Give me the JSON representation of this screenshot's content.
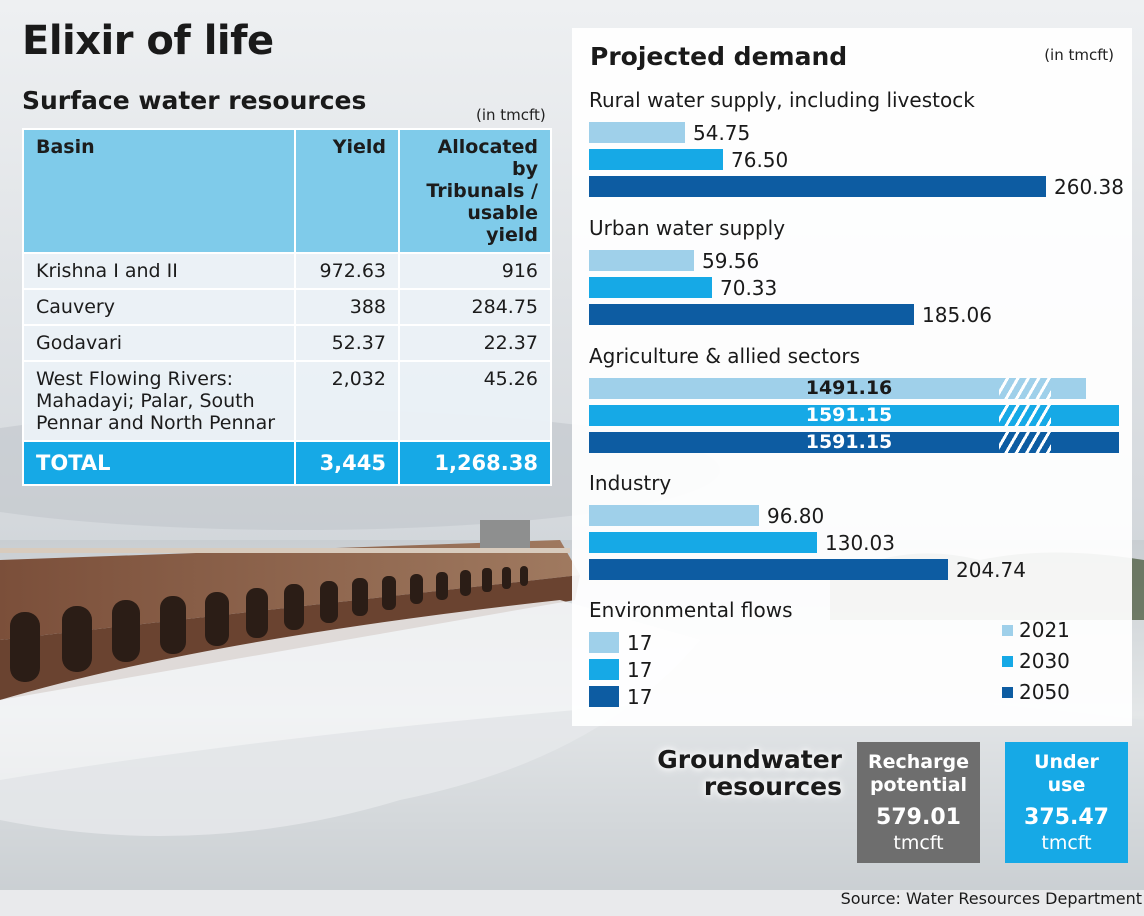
{
  "title": "Elixir of life",
  "surface": {
    "subtitle": "Surface water resources",
    "unit": "(in tmcft)",
    "headers": {
      "basin": "Basin",
      "yield": "Yield",
      "allocated": "Allocated by Tribunals / usable yield"
    },
    "rows": [
      {
        "basin": "Krishna I and II",
        "yield": "972.63",
        "allocated": "916"
      },
      {
        "basin": "Cauvery",
        "yield": "388",
        "allocated": "284.75"
      },
      {
        "basin": "Godavari",
        "yield": "52.37",
        "allocated": "22.37"
      },
      {
        "basin": "West Flowing Rivers: Mahadayi; Palar, South Pennar and North Pennar",
        "yield": "2,032",
        "allocated": "45.26"
      }
    ],
    "total": {
      "label": "TOTAL",
      "yield": "3,445",
      "allocated": "1,268.38"
    }
  },
  "chart_data": {
    "type": "bar",
    "orientation": "horizontal",
    "title": "Projected demand",
    "unit": "(in tmcft)",
    "categories": [
      "Rural water supply, including livestock",
      "Urban water supply",
      "Agriculture & allied sectors",
      "Industry",
      "Environmental flows"
    ],
    "series": [
      {
        "name": "2021",
        "values": [
          54.75,
          59.56,
          1491.16,
          96.8,
          17
        ],
        "labels": [
          "54.75",
          "59.56",
          "1491.16",
          "96.80",
          "17"
        ]
      },
      {
        "name": "2030",
        "values": [
          76.5,
          70.33,
          1591.15,
          130.03,
          17
        ],
        "labels": [
          "76.50",
          "70.33",
          "1591.15",
          "130.03",
          "17"
        ]
      },
      {
        "name": "2050",
        "values": [
          260.38,
          185.06,
          1591.15,
          204.74,
          17
        ],
        "labels": [
          "260.38",
          "185.06",
          "1591.15",
          "204.74",
          "17"
        ]
      }
    ],
    "broken_axis_category": "Agriculture & allied sectors",
    "legend_position": "bottom-right",
    "colors": {
      "2021": "#9fd0ea",
      "2030": "#16a9e6",
      "2050": "#0d5ca2"
    }
  },
  "groundwater": {
    "label_line1": "Groundwater",
    "label_line2": "resources",
    "recharge": {
      "line1": "Recharge",
      "line2": "potential",
      "value": "579.01",
      "unit": "tmcft",
      "color": "#6e6e6e"
    },
    "underuse": {
      "line1": "Under",
      "line2": "use",
      "value": "375.47",
      "unit": "tmcft",
      "color": "#16a9e6"
    }
  },
  "source": "Source: Water Resources Department"
}
